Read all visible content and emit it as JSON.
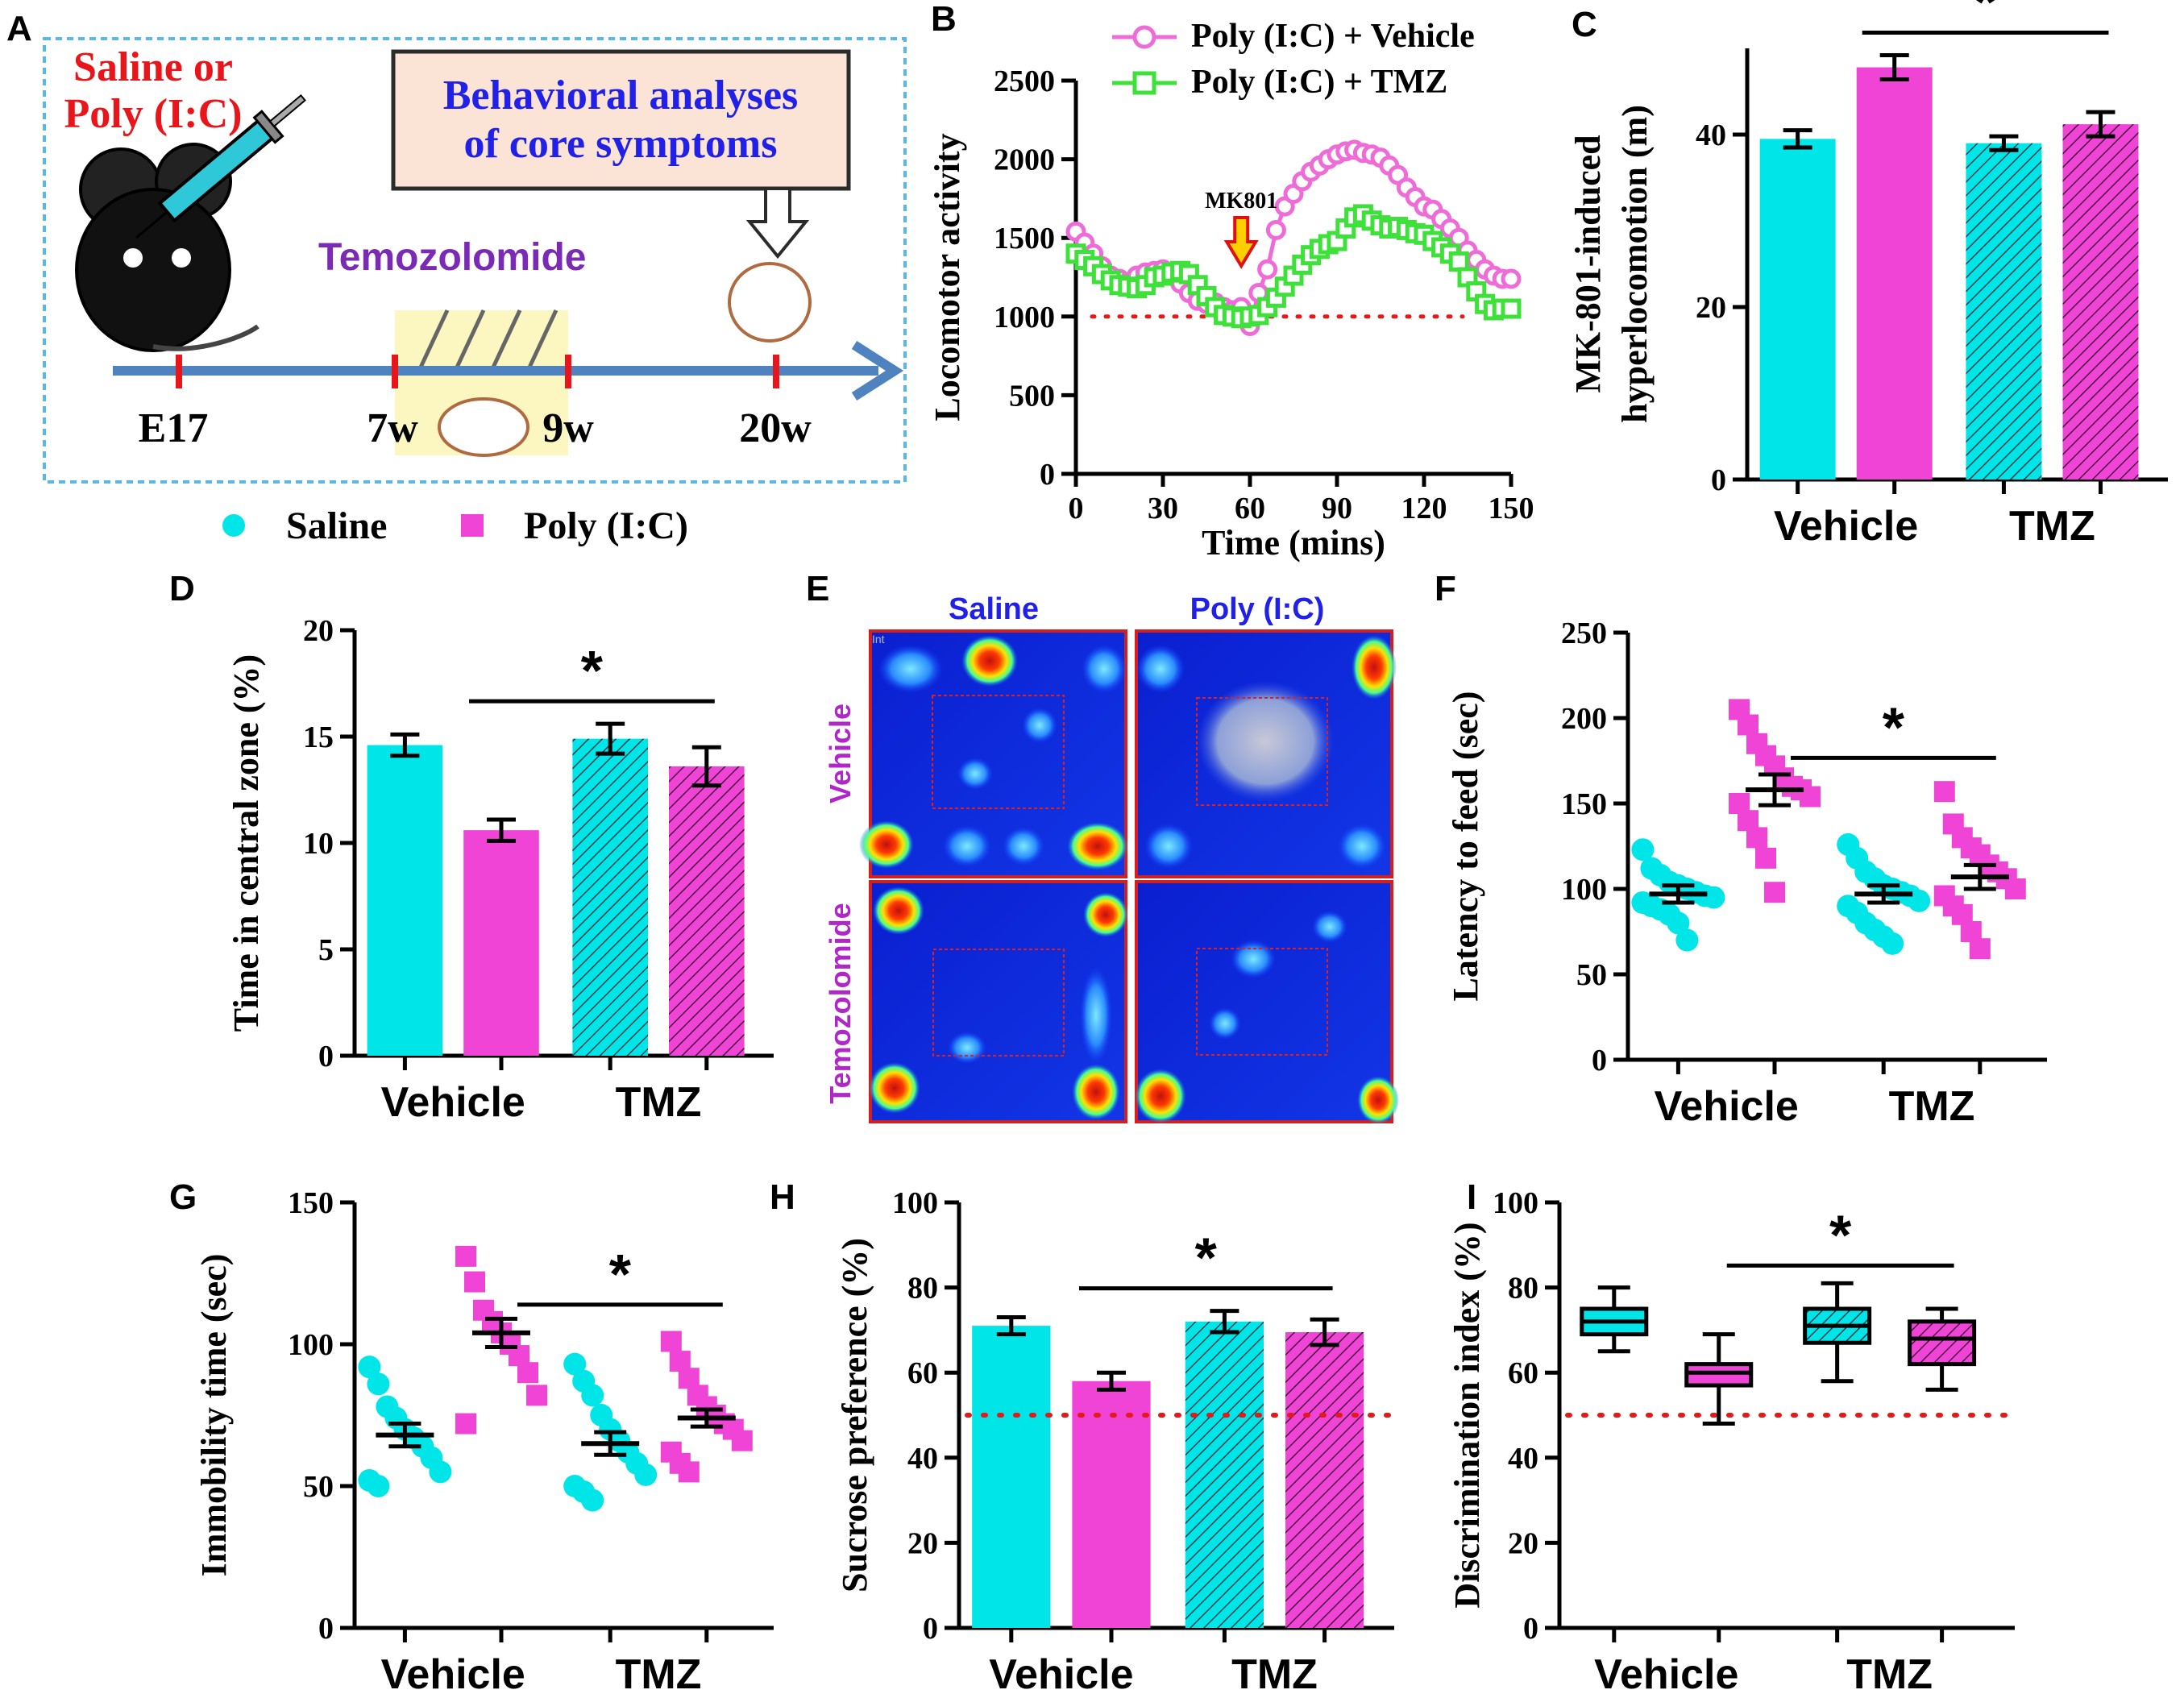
{
  "colors": {
    "saline": "#00e5e8",
    "polyic": "#f044d6",
    "vehicle_line": "#ee6bd8",
    "tmz_line": "#3ee03a",
    "dotted": "#e61919",
    "timeline": "#4f83c0"
  },
  "panel_a": {
    "label": "A",
    "treatment_line1": "Saline or",
    "treatment_line2": "Poly (I:C)",
    "box_line1": "Behavioral analyses",
    "box_line2": "of core symptoms",
    "drug": "Temozolomide",
    "timeline_labels": [
      "E17",
      "7w",
      "9w",
      "20w"
    ],
    "legend_saline": "Saline",
    "legend_polyic": "Poly (I:C)"
  },
  "panel_e": {
    "label": "E",
    "col_saline": "Saline",
    "col_polyic": "Poly (I:C)",
    "row_vehicle": "Vehicle",
    "row_tmz": "Temozolomide",
    "corner_mark": "Int"
  },
  "chart_data": [
    {
      "id": "B",
      "type": "line",
      "title": "",
      "xlabel": "Time (mins)",
      "ylabel": "Locomotor activity",
      "xlim": [
        0,
        150
      ],
      "ylim": [
        0,
        2500
      ],
      "xticks": [
        "0",
        "30",
        "60",
        "90",
        "120",
        "150"
      ],
      "yticks": [
        "0",
        "500",
        "1000",
        "1500",
        "2000",
        "2500"
      ],
      "annotation": "MK801",
      "annotation_x": 57,
      "reference_y": 1000,
      "x": [
        0,
        3,
        6,
        9,
        12,
        15,
        18,
        21,
        24,
        27,
        30,
        33,
        36,
        39,
        42,
        45,
        48,
        51,
        54,
        57,
        60,
        63,
        66,
        69,
        72,
        75,
        78,
        81,
        84,
        87,
        90,
        93,
        96,
        99,
        102,
        105,
        108,
        111,
        114,
        117,
        120,
        123,
        126,
        129,
        132,
        135,
        138,
        141,
        144,
        147,
        150
      ],
      "series": [
        {
          "name": "Poly (I:C) + Vehicle",
          "values": [
            1540,
            1470,
            1400,
            1320,
            1260,
            1240,
            1220,
            1260,
            1280,
            1290,
            1300,
            1260,
            1210,
            1150,
            1100,
            1080,
            1090,
            1060,
            1040,
            1060,
            940,
            1150,
            1300,
            1550,
            1700,
            1780,
            1860,
            1920,
            1960,
            2000,
            2030,
            2050,
            2060,
            2040,
            2030,
            2010,
            1960,
            1900,
            1820,
            1760,
            1700,
            1680,
            1620,
            1560,
            1500,
            1420,
            1360,
            1300,
            1260,
            1240,
            1240
          ]
        },
        {
          "name": "Poly (I:C) + TMZ",
          "values": [
            1400,
            1360,
            1320,
            1270,
            1230,
            1200,
            1190,
            1180,
            1200,
            1250,
            1260,
            1280,
            1290,
            1270,
            1200,
            1130,
            1060,
            1010,
            1000,
            990,
            1000,
            1010,
            1060,
            1120,
            1190,
            1260,
            1330,
            1390,
            1430,
            1460,
            1480,
            1560,
            1630,
            1650,
            1610,
            1580,
            1560,
            1570,
            1550,
            1530,
            1520,
            1480,
            1440,
            1400,
            1350,
            1250,
            1160,
            1080,
            1040,
            1050,
            1050
          ]
        }
      ]
    },
    {
      "id": "C",
      "type": "bar",
      "ylabel": "MK-801-induced hyperlocomotion (m)",
      "ylim": [
        0,
        50
      ],
      "yticks": [
        "0",
        "20",
        "40"
      ],
      "groups": [
        "Vehicle",
        "TMZ"
      ],
      "significance": "*",
      "series": [
        {
          "name": "Saline",
          "values": [
            39.5,
            39.0
          ],
          "sem": [
            1.0,
            0.8
          ]
        },
        {
          "name": "Poly (I:C)",
          "values": [
            47.8,
            41.2
          ],
          "sem": [
            1.4,
            1.4
          ]
        }
      ]
    },
    {
      "id": "D",
      "type": "bar",
      "ylabel": "Time in central zone (%)",
      "ylim": [
        0,
        20
      ],
      "yticks": [
        "0",
        "5",
        "10",
        "15",
        "20"
      ],
      "groups": [
        "Vehicle",
        "TMZ"
      ],
      "significance": "*",
      "series": [
        {
          "name": "Saline",
          "values": [
            14.6,
            14.9
          ],
          "sem": [
            0.5,
            0.7
          ]
        },
        {
          "name": "Poly (I:C)",
          "values": [
            10.6,
            13.6
          ],
          "sem": [
            0.5,
            0.9
          ]
        }
      ]
    },
    {
      "id": "F",
      "type": "scatter",
      "ylabel": "Latency to feed (sec)",
      "ylim": [
        0,
        250
      ],
      "yticks": [
        "0",
        "50",
        "100",
        "150",
        "200",
        "250"
      ],
      "groups": [
        "Vehicle",
        "TMZ"
      ],
      "significance": "*",
      "series": [
        {
          "name": "Saline",
          "group": "Vehicle",
          "mean": 97,
          "sem": 5,
          "points": [
            123,
            112,
            108,
            104,
            102,
            100,
            98,
            96,
            95,
            92,
            90,
            88,
            85,
            80,
            70
          ]
        },
        {
          "name": "Poly (I:C)",
          "group": "Vehicle",
          "mean": 158,
          "sem": 9,
          "points": [
            205,
            196,
            185,
            178,
            172,
            165,
            160,
            158,
            154,
            150,
            140,
            130,
            118,
            98
          ]
        },
        {
          "name": "Saline",
          "group": "TMZ",
          "mean": 97,
          "sem": 5,
          "points": [
            126,
            118,
            110,
            106,
            102,
            100,
            98,
            96,
            93,
            90,
            86,
            80,
            76,
            72,
            68
          ]
        },
        {
          "name": "Poly (I:C)",
          "group": "TMZ",
          "mean": 107,
          "sem": 7,
          "points": [
            157,
            138,
            130,
            124,
            120,
            114,
            110,
            106,
            100,
            96,
            90,
            85,
            75,
            65
          ]
        }
      ]
    },
    {
      "id": "G",
      "type": "scatter",
      "ylabel": "Immobility time (sec)",
      "ylim": [
        0,
        150
      ],
      "yticks": [
        "0",
        "50",
        "100",
        "150"
      ],
      "groups": [
        "Vehicle",
        "TMZ"
      ],
      "significance": "*",
      "series": [
        {
          "name": "Saline",
          "group": "Vehicle",
          "mean": 68,
          "sem": 4,
          "points": [
            92,
            86,
            78,
            74,
            70,
            67,
            64,
            60,
            55,
            52,
            50
          ]
        },
        {
          "name": "Poly (I:C)",
          "group": "Vehicle",
          "mean": 104,
          "sem": 5,
          "points": [
            131,
            122,
            112,
            108,
            104,
            100,
            96,
            90,
            82,
            72
          ]
        },
        {
          "name": "Saline",
          "group": "TMZ",
          "mean": 65,
          "sem": 4,
          "points": [
            93,
            87,
            82,
            75,
            70,
            66,
            62,
            58,
            54,
            50,
            48,
            45
          ]
        },
        {
          "name": "Poly (I:C)",
          "group": "TMZ",
          "mean": 74,
          "sem": 3,
          "points": [
            101,
            94,
            88,
            82,
            78,
            75,
            72,
            70,
            66,
            62,
            58,
            55
          ]
        }
      ]
    },
    {
      "id": "H",
      "type": "bar",
      "ylabel": "Sucrose preference (%)",
      "ylim": [
        0,
        100
      ],
      "yticks": [
        "0",
        "20",
        "40",
        "60",
        "80",
        "100"
      ],
      "groups": [
        "Vehicle",
        "TMZ"
      ],
      "significance": "*",
      "reference_y": 50,
      "series": [
        {
          "name": "Saline",
          "values": [
            71,
            72
          ],
          "sem": [
            2,
            2.5
          ]
        },
        {
          "name": "Poly (I:C)",
          "values": [
            58,
            69.5
          ],
          "sem": [
            2,
            3
          ]
        }
      ]
    },
    {
      "id": "I",
      "type": "box",
      "ylabel": "Discrimination index (%)",
      "ylim": [
        0,
        100
      ],
      "yticks": [
        "0",
        "20",
        "40",
        "60",
        "80",
        "100"
      ],
      "groups": [
        "Vehicle",
        "TMZ"
      ],
      "significance": "*",
      "reference_y": 50,
      "series": [
        {
          "name": "Saline",
          "group": "Vehicle",
          "min": 65,
          "q1": 69,
          "median": 72,
          "q3": 75,
          "max": 80
        },
        {
          "name": "Poly (I:C)",
          "group": "Vehicle",
          "min": 48,
          "q1": 57,
          "median": 60,
          "q3": 62,
          "max": 69
        },
        {
          "name": "Saline",
          "group": "TMZ",
          "min": 58,
          "q1": 67,
          "median": 71,
          "q3": 75,
          "max": 81
        },
        {
          "name": "Poly (I:C)",
          "group": "TMZ",
          "min": 56,
          "q1": 62,
          "median": 68,
          "q3": 72,
          "max": 75
        }
      ]
    }
  ]
}
